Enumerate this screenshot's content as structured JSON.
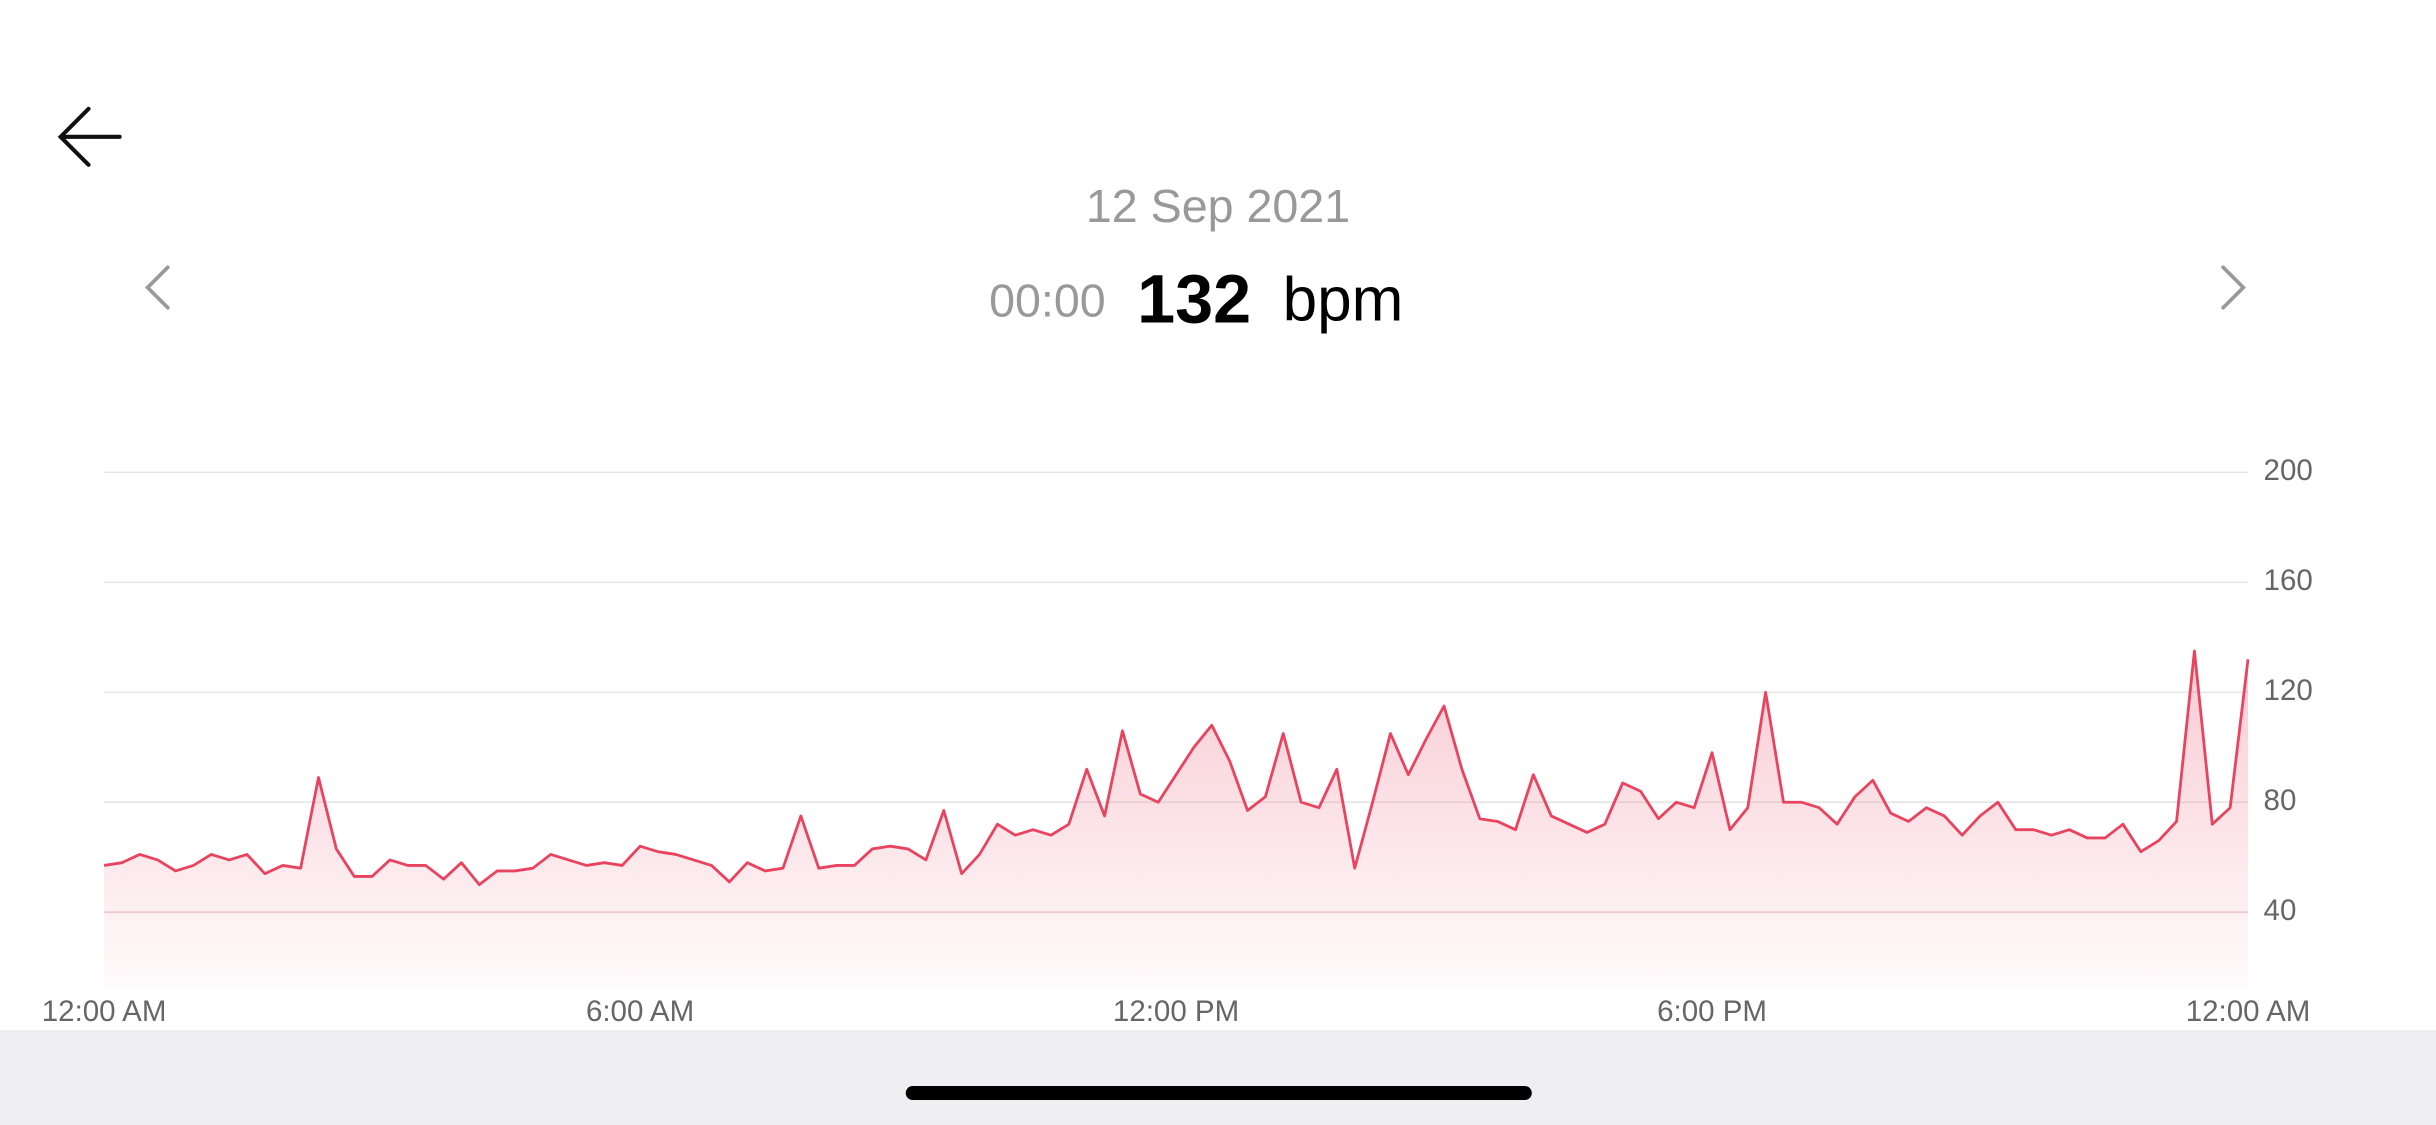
{
  "header": {
    "date": "12 Sep 2021",
    "time": "00:00",
    "value": 132,
    "unit": "bpm"
  },
  "chart_data": {
    "type": "line",
    "x": [
      0.0,
      0.2,
      0.4,
      0.6,
      0.8,
      1.0,
      1.2,
      1.4,
      1.6,
      1.8,
      2.0,
      2.2,
      2.4,
      2.6,
      2.8,
      3.0,
      3.2,
      3.4,
      3.6,
      3.8,
      4.0,
      4.2,
      4.4,
      4.6,
      4.8,
      5.0,
      5.2,
      5.4,
      5.6,
      5.8,
      6.0,
      6.2,
      6.4,
      6.6,
      6.8,
      7.0,
      7.2,
      7.4,
      7.6,
      7.8,
      8.0,
      8.2,
      8.4,
      8.6,
      8.8,
      9.0,
      9.2,
      9.4,
      9.6,
      9.8,
      10.0,
      10.2,
      10.4,
      10.6,
      10.8,
      11.0,
      11.2,
      11.4,
      11.6,
      11.8,
      12.0,
      12.2,
      12.4,
      12.6,
      12.8,
      13.0,
      13.2,
      13.4,
      13.6,
      13.8,
      14.0,
      14.2,
      14.4,
      14.6,
      14.8,
      15.0,
      15.2,
      15.4,
      15.6,
      15.8,
      16.0,
      16.2,
      16.4,
      16.6,
      16.8,
      17.0,
      17.2,
      17.4,
      17.6,
      17.8,
      18.0,
      18.2,
      18.4,
      18.6,
      18.8,
      19.0,
      19.2,
      19.4,
      19.6,
      19.8,
      20.0,
      20.2,
      20.4,
      20.6,
      20.8,
      21.0,
      21.2,
      21.4,
      21.6,
      21.8,
      22.0,
      22.2,
      22.4,
      22.6,
      22.8,
      23.0,
      23.2,
      23.4,
      23.6,
      23.8,
      24.0
    ],
    "values": [
      57,
      58,
      61,
      59,
      55,
      57,
      61,
      59,
      61,
      54,
      57,
      56,
      89,
      63,
      53,
      53,
      59,
      57,
      57,
      52,
      58,
      50,
      55,
      55,
      56,
      61,
      59,
      57,
      58,
      57,
      64,
      62,
      61,
      59,
      57,
      51,
      58,
      55,
      56,
      75,
      56,
      57,
      57,
      63,
      64,
      63,
      59,
      77,
      54,
      61,
      72,
      68,
      70,
      68,
      72,
      92,
      75,
      106,
      83,
      80,
      90,
      100,
      108,
      95,
      77,
      82,
      105,
      80,
      78,
      92,
      56,
      80,
      105,
      90,
      103,
      115,
      92,
      74,
      73,
      70,
      90,
      75,
      72,
      69,
      72,
      87,
      84,
      74,
      80,
      78,
      98,
      70,
      78,
      120,
      80,
      80,
      78,
      72,
      82,
      88,
      76,
      73,
      78,
      75,
      68,
      75,
      80,
      70,
      70,
      68,
      70,
      67,
      67,
      72,
      62,
      66,
      73,
      135,
      72,
      78,
      132
    ],
    "color": "#e8445f",
    "xlim": [
      0,
      24
    ],
    "xticks": [
      {
        "value": 0,
        "label": "12:00 AM"
      },
      {
        "value": 6,
        "label": "6:00 AM"
      },
      {
        "value": 12,
        "label": "12:00 PM"
      },
      {
        "value": 18,
        "label": "6:00 PM"
      },
      {
        "value": 24,
        "label": "12:00 AM"
      }
    ],
    "ylim": [
      12,
      200
    ],
    "yticks": [
      40,
      80,
      120,
      160,
      200
    ],
    "grid": true
  }
}
